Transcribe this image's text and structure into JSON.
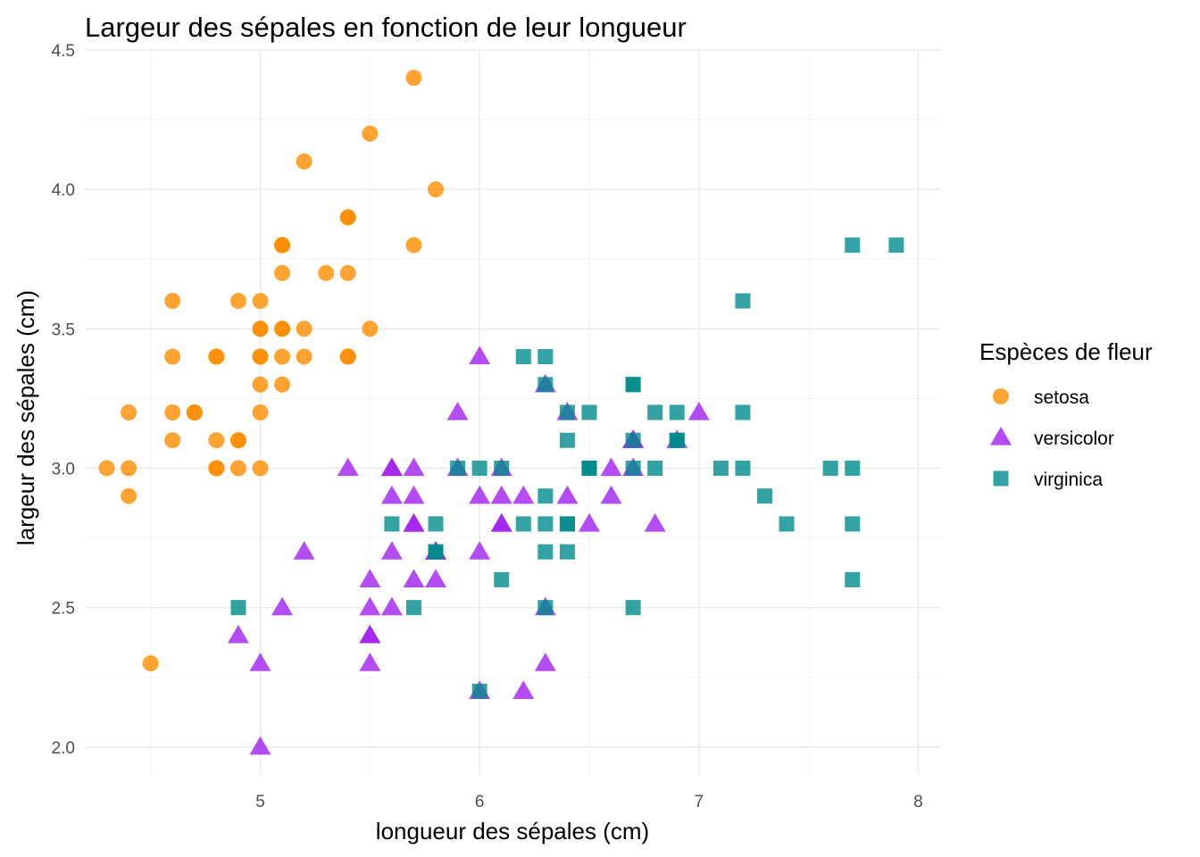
{
  "chart_data": {
    "type": "scatter",
    "title": "Largeur des sépales en fonction de leur longueur",
    "xlabel": "longueur des sépales (cm)",
    "ylabel": "largeur des sépales (cm)",
    "xlim": [
      4.2,
      8.1
    ],
    "ylim": [
      1.9,
      4.5
    ],
    "x_ticks": [
      5,
      6,
      7,
      8
    ],
    "y_ticks": [
      2.0,
      2.5,
      3.0,
      3.5,
      4.0,
      4.5
    ],
    "x_tick_labels": [
      "5",
      "6",
      "7",
      "8"
    ],
    "y_tick_labels": [
      "2.0",
      "2.5",
      "3.0",
      "3.5",
      "4.0",
      "4.5"
    ],
    "grid": true,
    "legend": {
      "title": "Espèces de fleur",
      "position": "right"
    },
    "series": [
      {
        "name": "setosa",
        "marker": "circle",
        "color": "#FF8C00",
        "points": [
          [
            5.1,
            3.5
          ],
          [
            4.9,
            3.0
          ],
          [
            4.7,
            3.2
          ],
          [
            4.6,
            3.1
          ],
          [
            5.0,
            3.6
          ],
          [
            5.4,
            3.9
          ],
          [
            4.6,
            3.4
          ],
          [
            5.0,
            3.4
          ],
          [
            4.4,
            2.9
          ],
          [
            4.9,
            3.1
          ],
          [
            5.4,
            3.7
          ],
          [
            4.8,
            3.4
          ],
          [
            4.8,
            3.0
          ],
          [
            4.3,
            3.0
          ],
          [
            5.8,
            4.0
          ],
          [
            5.7,
            4.4
          ],
          [
            5.4,
            3.9
          ],
          [
            5.1,
            3.5
          ],
          [
            5.7,
            3.8
          ],
          [
            5.1,
            3.8
          ],
          [
            5.4,
            3.4
          ],
          [
            5.1,
            3.7
          ],
          [
            4.6,
            3.6
          ],
          [
            5.1,
            3.3
          ],
          [
            4.8,
            3.4
          ],
          [
            5.0,
            3.0
          ],
          [
            5.0,
            3.4
          ],
          [
            5.2,
            3.5
          ],
          [
            5.2,
            3.4
          ],
          [
            4.7,
            3.2
          ],
          [
            4.8,
            3.1
          ],
          [
            5.4,
            3.4
          ],
          [
            5.2,
            4.1
          ],
          [
            5.5,
            4.2
          ],
          [
            4.9,
            3.1
          ],
          [
            5.0,
            3.2
          ],
          [
            5.5,
            3.5
          ],
          [
            4.9,
            3.6
          ],
          [
            4.4,
            3.0
          ],
          [
            5.1,
            3.4
          ],
          [
            5.0,
            3.5
          ],
          [
            4.5,
            2.3
          ],
          [
            4.4,
            3.2
          ],
          [
            5.0,
            3.5
          ],
          [
            5.1,
            3.8
          ],
          [
            4.8,
            3.0
          ],
          [
            5.1,
            3.8
          ],
          [
            4.6,
            3.2
          ],
          [
            5.3,
            3.7
          ],
          [
            5.0,
            3.3
          ]
        ]
      },
      {
        "name": "versicolor",
        "marker": "triangle",
        "color": "#A020F0",
        "points": [
          [
            7.0,
            3.2
          ],
          [
            6.4,
            3.2
          ],
          [
            6.9,
            3.1
          ],
          [
            5.5,
            2.3
          ],
          [
            6.5,
            2.8
          ],
          [
            5.7,
            2.8
          ],
          [
            6.3,
            3.3
          ],
          [
            4.9,
            2.4
          ],
          [
            6.6,
            2.9
          ],
          [
            5.2,
            2.7
          ],
          [
            5.0,
            2.0
          ],
          [
            5.9,
            3.0
          ],
          [
            6.0,
            2.2
          ],
          [
            6.1,
            2.9
          ],
          [
            5.6,
            2.9
          ],
          [
            6.7,
            3.1
          ],
          [
            5.6,
            3.0
          ],
          [
            5.8,
            2.7
          ],
          [
            6.2,
            2.2
          ],
          [
            5.6,
            2.5
          ],
          [
            5.9,
            3.2
          ],
          [
            6.1,
            2.8
          ],
          [
            6.3,
            2.5
          ],
          [
            6.1,
            2.8
          ],
          [
            6.4,
            2.9
          ],
          [
            6.6,
            3.0
          ],
          [
            6.8,
            2.8
          ],
          [
            6.7,
            3.0
          ],
          [
            6.0,
            2.9
          ],
          [
            5.7,
            2.6
          ],
          [
            5.5,
            2.4
          ],
          [
            5.5,
            2.4
          ],
          [
            5.8,
            2.7
          ],
          [
            6.0,
            2.7
          ],
          [
            5.4,
            3.0
          ],
          [
            6.0,
            3.4
          ],
          [
            6.7,
            3.1
          ],
          [
            6.3,
            2.3
          ],
          [
            5.6,
            3.0
          ],
          [
            5.5,
            2.5
          ],
          [
            5.5,
            2.6
          ],
          [
            6.1,
            3.0
          ],
          [
            5.8,
            2.6
          ],
          [
            5.0,
            2.3
          ],
          [
            5.6,
            2.7
          ],
          [
            5.7,
            3.0
          ],
          [
            5.7,
            2.9
          ],
          [
            6.2,
            2.9
          ],
          [
            5.1,
            2.5
          ],
          [
            5.7,
            2.8
          ]
        ]
      },
      {
        "name": "virginica",
        "marker": "square",
        "color": "#008B8B",
        "points": [
          [
            6.3,
            3.3
          ],
          [
            5.8,
            2.7
          ],
          [
            7.1,
            3.0
          ],
          [
            6.3,
            2.9
          ],
          [
            6.5,
            3.0
          ],
          [
            7.6,
            3.0
          ],
          [
            4.9,
            2.5
          ],
          [
            7.3,
            2.9
          ],
          [
            6.7,
            2.5
          ],
          [
            7.2,
            3.6
          ],
          [
            6.5,
            3.2
          ],
          [
            6.4,
            2.7
          ],
          [
            6.8,
            3.0
          ],
          [
            5.7,
            2.5
          ],
          [
            5.8,
            2.8
          ],
          [
            6.4,
            3.2
          ],
          [
            6.5,
            3.0
          ],
          [
            7.7,
            3.8
          ],
          [
            7.7,
            2.6
          ],
          [
            6.0,
            2.2
          ],
          [
            6.9,
            3.2
          ],
          [
            5.6,
            2.8
          ],
          [
            7.7,
            2.8
          ],
          [
            6.3,
            2.7
          ],
          [
            6.7,
            3.3
          ],
          [
            7.2,
            3.2
          ],
          [
            6.2,
            2.8
          ],
          [
            6.1,
            3.0
          ],
          [
            6.4,
            2.8
          ],
          [
            7.2,
            3.0
          ],
          [
            7.4,
            2.8
          ],
          [
            7.9,
            3.8
          ],
          [
            6.4,
            2.8
          ],
          [
            6.3,
            2.8
          ],
          [
            6.1,
            2.6
          ],
          [
            7.7,
            3.0
          ],
          [
            6.3,
            3.4
          ],
          [
            6.4,
            3.1
          ],
          [
            6.0,
            3.0
          ],
          [
            6.9,
            3.1
          ],
          [
            6.7,
            3.1
          ],
          [
            6.9,
            3.1
          ],
          [
            5.8,
            2.7
          ],
          [
            6.8,
            3.2
          ],
          [
            6.7,
            3.3
          ],
          [
            6.7,
            3.0
          ],
          [
            6.3,
            2.5
          ],
          [
            6.5,
            3.0
          ],
          [
            6.2,
            3.4
          ],
          [
            5.9,
            3.0
          ]
        ]
      }
    ]
  }
}
